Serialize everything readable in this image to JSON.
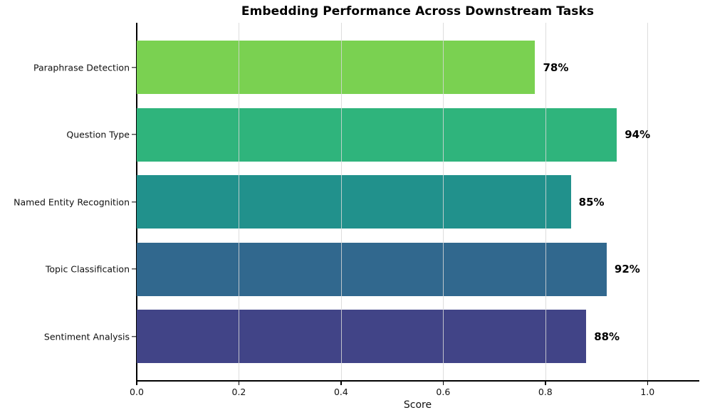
{
  "chart_data": {
    "type": "bar",
    "orientation": "horizontal",
    "title": "Embedding Performance Across Downstream Tasks",
    "xlabel": "Score",
    "ylabel": "",
    "categories": [
      "Paraphrase Detection",
      "Question Type",
      "Named Entity Recognition",
      "Topic Classification",
      "Sentiment Analysis"
    ],
    "values": [
      0.78,
      0.94,
      0.85,
      0.92,
      0.88
    ],
    "value_labels": [
      "78%",
      "94%",
      "85%",
      "92%",
      "88%"
    ],
    "bar_colors": [
      "#7ad151",
      "#2fb47c",
      "#21918c",
      "#31688e",
      "#414487"
    ],
    "xlim": [
      0,
      1.1
    ],
    "xticks": [
      0.0,
      0.2,
      0.4,
      0.6,
      0.8,
      1.0
    ],
    "xtick_labels": [
      "0.0",
      "0.2",
      "0.4",
      "0.6",
      "0.8",
      "1.0"
    ],
    "grid": true,
    "grid_axis": "x",
    "legend": false
  },
  "colors": {
    "background": "#ffffff",
    "grid": "#d7d7d7",
    "spine": "#000000",
    "text": "#000000"
  }
}
